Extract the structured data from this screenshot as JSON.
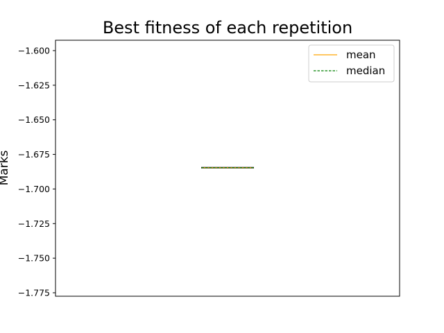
{
  "chart_data": {
    "type": "boxplot",
    "title": "Best fitness of each repetition",
    "xlabel": "",
    "ylabel": "Marks",
    "ylim": [
      -1.7775,
      -1.5925
    ],
    "yticks": [
      "−1.600",
      "−1.625",
      "−1.650",
      "−1.675",
      "−1.700",
      "−1.725",
      "−1.750",
      "−1.775"
    ],
    "ytick_values": [
      -1.6,
      -1.625,
      -1.65,
      -1.675,
      -1.7,
      -1.725,
      -1.75,
      -1.775
    ],
    "grid": false,
    "legend_position": "top-right",
    "box": {
      "min": -1.6846,
      "q1": -1.6846,
      "median": -1.6846,
      "q3": -1.6846,
      "max": -1.6846,
      "mean": -1.6846
    },
    "series": [
      {
        "name": "mean",
        "color": "#ffa500",
        "style": "solid",
        "value": -1.6846
      },
      {
        "name": "median",
        "color": "#008000",
        "style": "dashed",
        "value": -1.6846
      }
    ]
  }
}
